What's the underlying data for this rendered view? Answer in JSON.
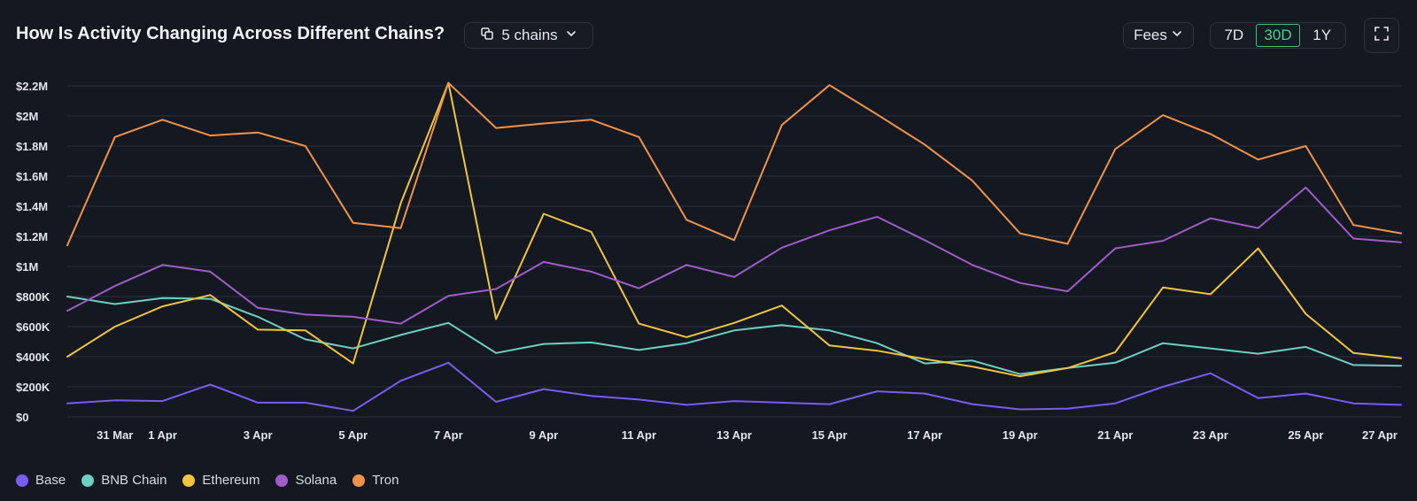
{
  "header": {
    "title": "How Is Activity Changing Across Different Chains?",
    "chains_label": "5 chains",
    "metric_label": "Fees",
    "ranges": [
      "7D",
      "30D",
      "1Y"
    ],
    "active_range": "30D"
  },
  "colors": {
    "background": "#141821",
    "grid": "#2a3040",
    "accent": "#4ed08c"
  },
  "chart_data": {
    "type": "line",
    "x": [
      "30 Mar",
      "31 Mar",
      "1 Apr",
      "2 Apr",
      "3 Apr",
      "4 Apr",
      "5 Apr",
      "6 Apr",
      "7 Apr",
      "8 Apr",
      "9 Apr",
      "10 Apr",
      "11 Apr",
      "12 Apr",
      "13 Apr",
      "14 Apr",
      "15 Apr",
      "16 Apr",
      "17 Apr",
      "18 Apr",
      "19 Apr",
      "20 Apr",
      "21 Apr",
      "22 Apr",
      "23 Apr",
      "24 Apr",
      "25 Apr",
      "26 Apr",
      "27 Apr"
    ],
    "x_tick_labels": [
      "31 Mar",
      "1 Apr",
      "3 Apr",
      "5 Apr",
      "7 Apr",
      "9 Apr",
      "11 Apr",
      "13 Apr",
      "15 Apr",
      "17 Apr",
      "19 Apr",
      "21 Apr",
      "23 Apr",
      "25 Apr",
      "27 Apr"
    ],
    "y_ticks": [
      0,
      200000,
      400000,
      600000,
      800000,
      1000000,
      1200000,
      1400000,
      1600000,
      1800000,
      2000000,
      2200000
    ],
    "y_tick_labels": [
      "$0",
      "$200K",
      "$400K",
      "$600K",
      "$800K",
      "$1M",
      "$1.2M",
      "$1.4M",
      "$1.6M",
      "$1.8M",
      "$2M",
      "$2.2M"
    ],
    "ylim": [
      0,
      2200000
    ],
    "grid": true,
    "legend_position": "bottom-left",
    "series": [
      {
        "name": "Base",
        "color": "#7b5cf0",
        "values": [
          90000,
          110000,
          105000,
          215000,
          95000,
          95000,
          40000,
          240000,
          360000,
          100000,
          185000,
          140000,
          115000,
          80000,
          105000,
          95000,
          85000,
          170000,
          155000,
          85000,
          50000,
          55000,
          90000,
          200000,
          290000,
          125000,
          155000,
          90000,
          80000
        ]
      },
      {
        "name": "BNB Chain",
        "color": "#6fcfc1",
        "values": [
          800000,
          750000,
          790000,
          785000,
          665000,
          515000,
          455000,
          545000,
          625000,
          425000,
          485000,
          495000,
          445000,
          490000,
          575000,
          610000,
          575000,
          490000,
          355000,
          375000,
          285000,
          325000,
          360000,
          490000,
          455000,
          420000,
          465000,
          345000,
          340000
        ]
      },
      {
        "name": "Ethereum",
        "color": "#f0c43c",
        "values": [
          400000,
          600000,
          735000,
          810000,
          580000,
          575000,
          355000,
          1420000,
          2220000,
          650000,
          1350000,
          1230000,
          620000,
          530000,
          625000,
          740000,
          475000,
          440000,
          385000,
          335000,
          270000,
          325000,
          430000,
          860000,
          815000,
          1120000,
          685000,
          425000,
          390000
        ]
      },
      {
        "name": "Solana",
        "color": "#a05cc8",
        "values": [
          705000,
          870000,
          1010000,
          965000,
          725000,
          680000,
          665000,
          620000,
          805000,
          850000,
          1030000,
          965000,
          855000,
          1010000,
          930000,
          1125000,
          1240000,
          1330000,
          1175000,
          1010000,
          890000,
          835000,
          1120000,
          1170000,
          1320000,
          1255000,
          1525000,
          1185000,
          1160000
        ]
      },
      {
        "name": "Tron",
        "color": "#f0924a",
        "values": [
          1140000,
          1860000,
          1975000,
          1870000,
          1890000,
          1800000,
          1290000,
          1255000,
          2220000,
          1920000,
          1950000,
          1975000,
          1860000,
          1310000,
          1175000,
          1940000,
          2205000,
          2010000,
          1810000,
          1570000,
          1220000,
          1150000,
          1780000,
          2005000,
          1880000,
          1710000,
          1800000,
          1275000,
          1220000
        ]
      }
    ]
  }
}
